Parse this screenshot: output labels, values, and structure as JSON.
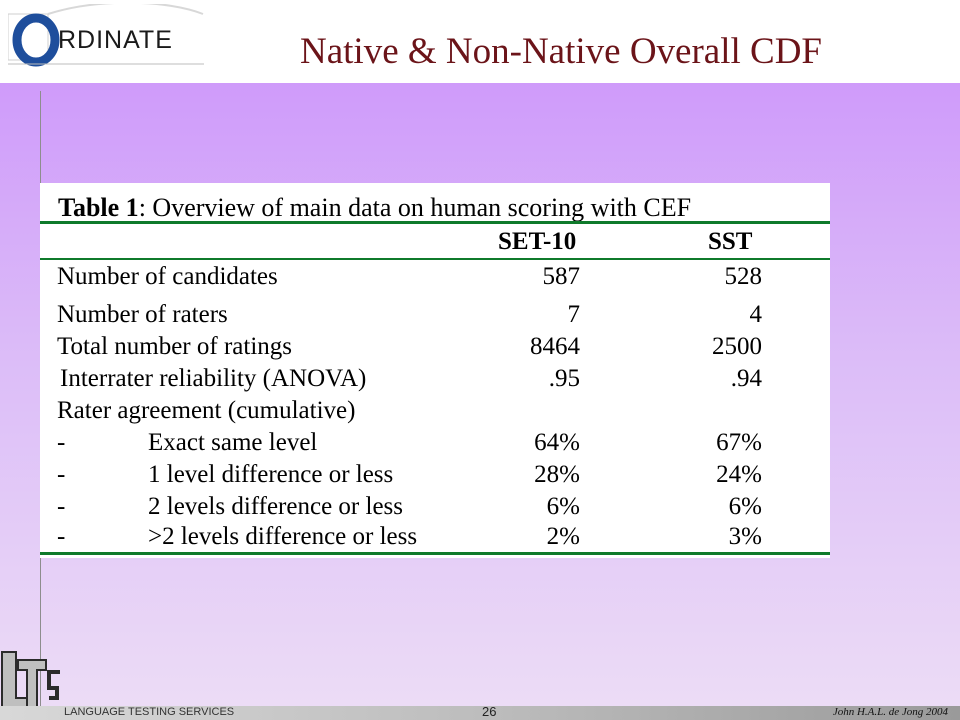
{
  "header": {
    "logo_text": "RDINATE",
    "title": "Native & Non-Native Overall CDF"
  },
  "table": {
    "caption_bold": "Table 1",
    "caption_rest": ": Overview of main data on human scoring with CEF",
    "columns": [
      "SET-10",
      "SST"
    ],
    "rows": [
      {
        "label": "Number of candidates",
        "v1": "587",
        "v2": "528"
      },
      {
        "label": "Number of raters",
        "v1": "7",
        "v2": "4"
      },
      {
        "label": "Total number of ratings",
        "v1": "8464",
        "v2": "2500"
      },
      {
        "label": "Interrater reliability (ANOVA)",
        "v1": ".95",
        "v2": ".94"
      },
      {
        "label": "Rater agreement (cumulative)",
        "v1": "",
        "v2": ""
      },
      {
        "dash": "-",
        "label": "Exact same level",
        "v1": "64%",
        "v2": "67%"
      },
      {
        "dash": "-",
        "label": "1 level difference or less",
        "v1": "28%",
        "v2": "24%"
      },
      {
        "dash": "-",
        "label": "2 levels difference or less",
        "v1": "6%",
        "v2": "6%"
      },
      {
        "dash": "-",
        "label": ">2 levels difference or less",
        "v1": "2%",
        "v2": "3%"
      }
    ]
  },
  "footer": {
    "org": "LANGUAGE TESTING SERVICES",
    "page_number": "26",
    "author": "John H.A.L. de Jong 2004"
  },
  "colors": {
    "title": "#6b1419",
    "rule": "#0f7a2b",
    "background_top": "#cf9bfa",
    "background_bottom": "#ecdcf6"
  }
}
